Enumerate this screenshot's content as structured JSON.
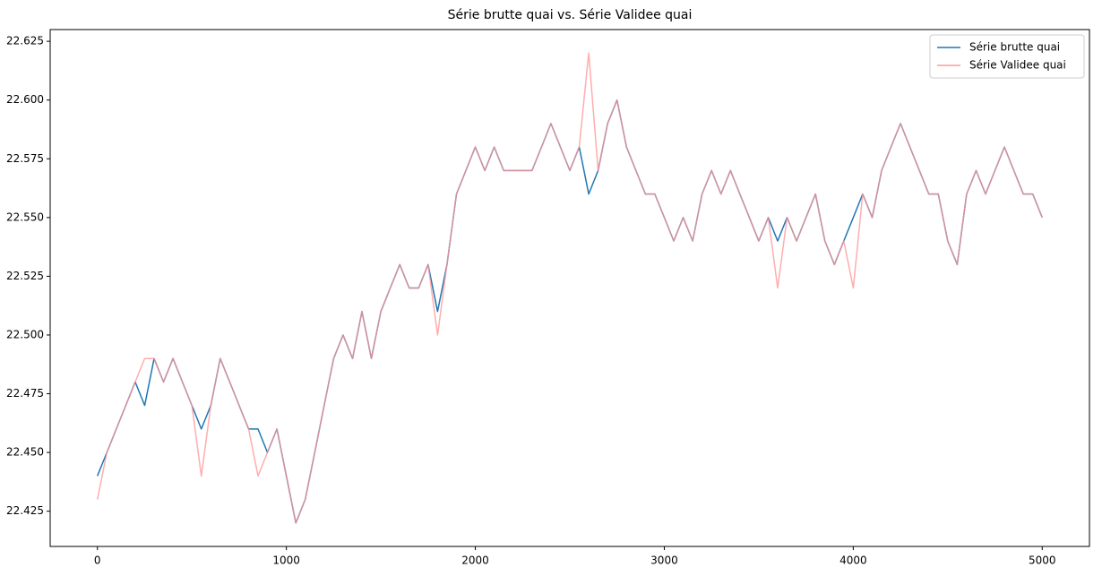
{
  "chart_data": {
    "type": "line",
    "title": "Série brutte quai vs. Série Validee quai",
    "x": [
      0,
      50,
      100,
      150,
      200,
      250,
      300,
      350,
      400,
      450,
      500,
      550,
      600,
      650,
      700,
      750,
      800,
      850,
      900,
      950,
      1000,
      1050,
      1100,
      1150,
      1200,
      1250,
      1300,
      1350,
      1400,
      1450,
      1500,
      1550,
      1600,
      1650,
      1700,
      1750,
      1800,
      1850,
      1900,
      1950,
      2000,
      2050,
      2100,
      2150,
      2200,
      2250,
      2300,
      2350,
      2400,
      2450,
      2500,
      2550,
      2600,
      2650,
      2700,
      2750,
      2800,
      2850,
      2900,
      2950,
      3000,
      3050,
      3100,
      3150,
      3200,
      3250,
      3300,
      3350,
      3400,
      3450,
      3500,
      3550,
      3600,
      3650,
      3700,
      3750,
      3800,
      3850,
      3900,
      3950,
      4000,
      4050,
      4100,
      4150,
      4200,
      4250,
      4300,
      4350,
      4400,
      4450,
      4500,
      4550,
      4600,
      4650,
      4700,
      4750,
      4800,
      4850,
      4900,
      4950,
      5000
    ],
    "series": [
      {
        "name": "Série brutte quai",
        "color": "#1f77b4",
        "values": [
          22.44,
          22.45,
          22.46,
          22.47,
          22.48,
          22.47,
          22.49,
          22.48,
          22.49,
          22.48,
          22.47,
          22.46,
          22.47,
          22.49,
          22.48,
          22.47,
          22.46,
          22.46,
          22.45,
          22.46,
          22.44,
          22.42,
          22.43,
          22.45,
          22.47,
          22.49,
          22.5,
          22.49,
          22.51,
          22.49,
          22.51,
          22.52,
          22.53,
          22.52,
          22.52,
          22.53,
          22.51,
          22.53,
          22.56,
          22.57,
          22.58,
          22.57,
          22.58,
          22.57,
          22.57,
          22.57,
          22.57,
          22.58,
          22.59,
          22.58,
          22.57,
          22.58,
          22.56,
          22.57,
          22.59,
          22.6,
          22.58,
          22.57,
          22.56,
          22.56,
          22.55,
          22.54,
          22.55,
          22.54,
          22.56,
          22.57,
          22.56,
          22.57,
          22.56,
          22.55,
          22.54,
          22.55,
          22.54,
          22.55,
          22.54,
          22.55,
          22.56,
          22.54,
          22.53,
          22.54,
          22.55,
          22.56,
          22.55,
          22.57,
          22.58,
          22.59,
          22.58,
          22.57,
          22.56,
          22.56,
          22.54,
          22.53,
          22.56,
          22.57,
          22.56,
          22.57,
          22.58,
          22.57,
          22.56,
          22.56,
          22.55
        ]
      },
      {
        "name": "Série Validee quai",
        "color": "#ff9999",
        "values": [
          22.43,
          22.45,
          22.46,
          22.47,
          22.48,
          22.49,
          22.49,
          22.48,
          22.49,
          22.48,
          22.47,
          22.44,
          22.47,
          22.49,
          22.48,
          22.47,
          22.46,
          22.44,
          22.45,
          22.46,
          22.44,
          22.42,
          22.43,
          22.45,
          22.47,
          22.49,
          22.5,
          22.49,
          22.51,
          22.49,
          22.51,
          22.52,
          22.53,
          22.52,
          22.52,
          22.53,
          22.5,
          22.53,
          22.56,
          22.57,
          22.58,
          22.57,
          22.58,
          22.57,
          22.57,
          22.57,
          22.57,
          22.58,
          22.59,
          22.58,
          22.57,
          22.58,
          22.62,
          22.57,
          22.59,
          22.6,
          22.58,
          22.57,
          22.56,
          22.56,
          22.55,
          22.54,
          22.55,
          22.54,
          22.56,
          22.57,
          22.56,
          22.57,
          22.56,
          22.55,
          22.54,
          22.55,
          22.52,
          22.55,
          22.54,
          22.55,
          22.56,
          22.54,
          22.53,
          22.54,
          22.52,
          22.56,
          22.55,
          22.57,
          22.58,
          22.59,
          22.58,
          22.57,
          22.56,
          22.56,
          22.54,
          22.53,
          22.56,
          22.57,
          22.56,
          22.57,
          22.58,
          22.57,
          22.56,
          22.56,
          22.55
        ]
      }
    ],
    "xlim": [
      -250,
      5250
    ],
    "xticks": [
      0,
      1000,
      2000,
      3000,
      4000,
      5000
    ],
    "ylim": [
      22.41,
      22.63
    ],
    "yticks": [
      22.425,
      {
        "value": 22.45,
        "label": "22.450"
      },
      22.475,
      {
        "value": 22.5,
        "label": "22.500"
      },
      22.525,
      {
        "value": 22.55,
        "label": "22.550"
      },
      22.575,
      {
        "value": 22.6,
        "label": "22.600"
      },
      22.625
    ],
    "legend": "upper right",
    "grid": false
  }
}
